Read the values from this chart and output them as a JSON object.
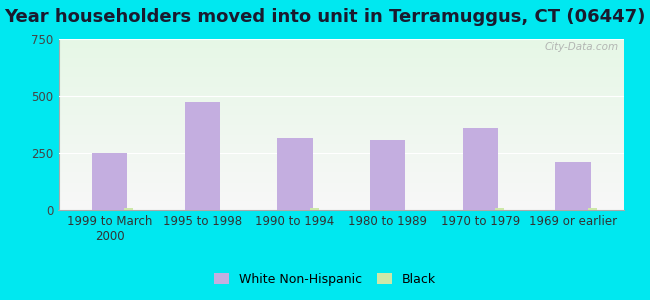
{
  "title": "Year householders moved into unit in Terramuggus, CT (06447)",
  "categories": [
    "1999 to March\n2000",
    "1995 to 1998",
    "1990 to 1994",
    "1980 to 1989",
    "1970 to 1979",
    "1969 or earlier"
  ],
  "white_values": [
    252,
    473,
    315,
    305,
    358,
    210
  ],
  "black_values": [
    8,
    0,
    10,
    0,
    10,
    10
  ],
  "white_color": "#c4aee0",
  "black_color": "#cde8a8",
  "ylim": [
    0,
    750
  ],
  "yticks": [
    0,
    250,
    500,
    750
  ],
  "bg_outer": "#00e8f0",
  "title_fontsize": 13,
  "tick_fontsize": 8.5,
  "legend_fontsize": 9,
  "watermark": "City-Data.com"
}
